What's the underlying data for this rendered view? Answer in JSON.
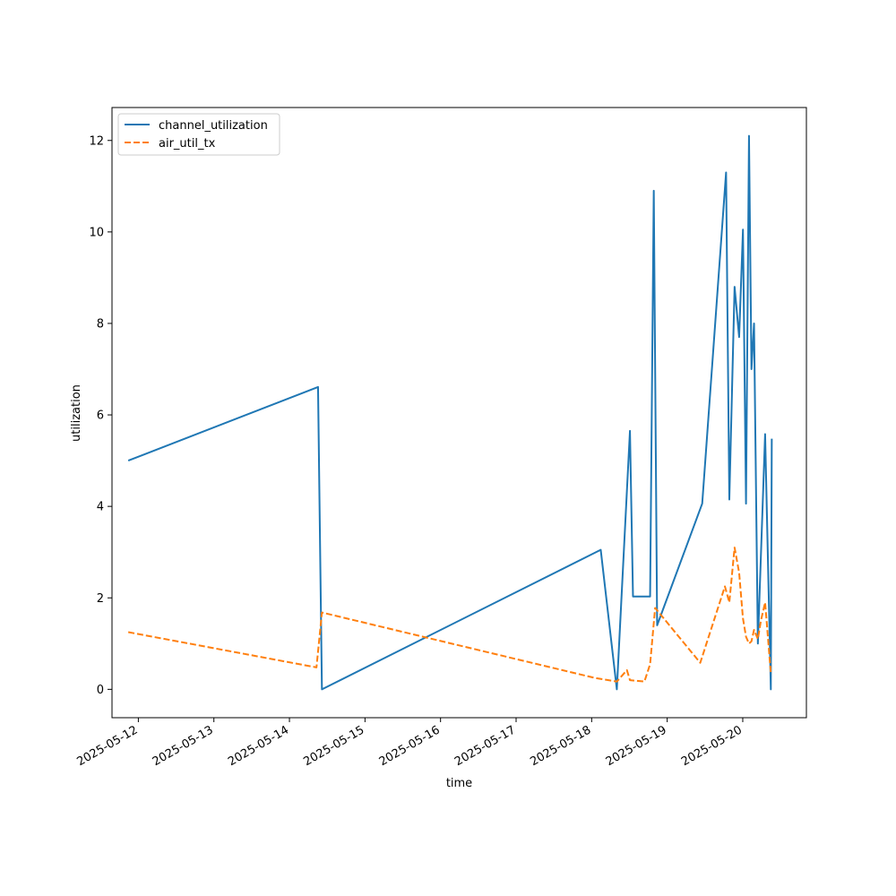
{
  "chart_data": {
    "type": "line",
    "xlabel": "time",
    "ylabel": "utilization",
    "xlim": [
      "2025-05-11T15:38",
      "2025-05-20T20:13"
    ],
    "ylim": [
      -0.62,
      12.72
    ],
    "x_ticks": [
      "2025-05-12",
      "2025-05-13",
      "2025-05-14",
      "2025-05-15",
      "2025-05-16",
      "2025-05-17",
      "2025-05-18",
      "2025-05-19",
      "2025-05-20"
    ],
    "y_ticks": [
      "0",
      "2",
      "4",
      "6",
      "8",
      "10",
      "12"
    ],
    "legend_position": "upper-left",
    "grid": false,
    "series": [
      {
        "name": "channel_utilization",
        "color": "#1f77b4",
        "style": "solid",
        "points": [
          [
            "2025-05-11T20:48",
            5.0
          ],
          [
            "2025-05-14T09:05",
            6.61
          ],
          [
            "2025-05-14T10:19",
            0.0
          ],
          [
            "2025-05-18T02:53",
            3.05
          ],
          [
            "2025-05-18T08:00",
            0.0
          ],
          [
            "2025-05-18T12:10",
            5.65
          ],
          [
            "2025-05-18T13:08",
            2.03
          ],
          [
            "2025-05-18T18:34",
            2.03
          ],
          [
            "2025-05-18T19:44",
            10.9
          ],
          [
            "2025-05-18T20:48",
            1.4
          ],
          [
            "2025-05-19T11:07",
            4.06
          ],
          [
            "2025-05-19T18:42",
            11.3
          ],
          [
            "2025-05-19T19:44",
            4.15
          ],
          [
            "2025-05-19T21:24",
            8.8
          ],
          [
            "2025-05-19T22:51",
            7.7
          ],
          [
            "2025-05-20T00:04",
            10.05
          ],
          [
            "2025-05-20T01:02",
            4.06
          ],
          [
            "2025-05-20T01:59",
            12.1
          ],
          [
            "2025-05-20T02:46",
            7.0
          ],
          [
            "2025-05-20T03:35",
            8.0
          ],
          [
            "2025-05-20T04:48",
            1.0
          ],
          [
            "2025-05-20T07:06",
            5.58
          ],
          [
            "2025-05-20T08:55",
            0.0
          ],
          [
            "2025-05-20T09:13",
            5.48
          ]
        ]
      },
      {
        "name": "air_util_tx",
        "color": "#ff7f0e",
        "style": "dashed",
        "points": [
          [
            "2025-05-11T20:48",
            1.25
          ],
          [
            "2025-05-14T08:35",
            0.48
          ],
          [
            "2025-05-14T10:19",
            1.68
          ],
          [
            "2025-05-18T00:58",
            0.25
          ],
          [
            "2025-05-18T08:00",
            0.17
          ],
          [
            "2025-05-18T11:12",
            0.42
          ],
          [
            "2025-05-18T12:10",
            0.2
          ],
          [
            "2025-05-18T16:46",
            0.17
          ],
          [
            "2025-05-18T18:34",
            0.55
          ],
          [
            "2025-05-18T20:10",
            1.78
          ],
          [
            "2025-05-19T10:30",
            0.58
          ],
          [
            "2025-05-19T18:20",
            2.25
          ],
          [
            "2025-05-19T19:44",
            1.9
          ],
          [
            "2025-05-19T21:24",
            3.1
          ],
          [
            "2025-05-19T22:51",
            2.55
          ],
          [
            "2025-05-20T00:04",
            1.55
          ],
          [
            "2025-05-20T01:02",
            1.15
          ],
          [
            "2025-05-20T01:59",
            1.0
          ],
          [
            "2025-05-20T02:46",
            1.05
          ],
          [
            "2025-05-20T03:35",
            1.3
          ],
          [
            "2025-05-20T04:48",
            1.1
          ],
          [
            "2025-05-20T05:46",
            1.5
          ],
          [
            "2025-05-20T07:06",
            1.9
          ],
          [
            "2025-05-20T08:55",
            0.35
          ]
        ]
      }
    ]
  }
}
